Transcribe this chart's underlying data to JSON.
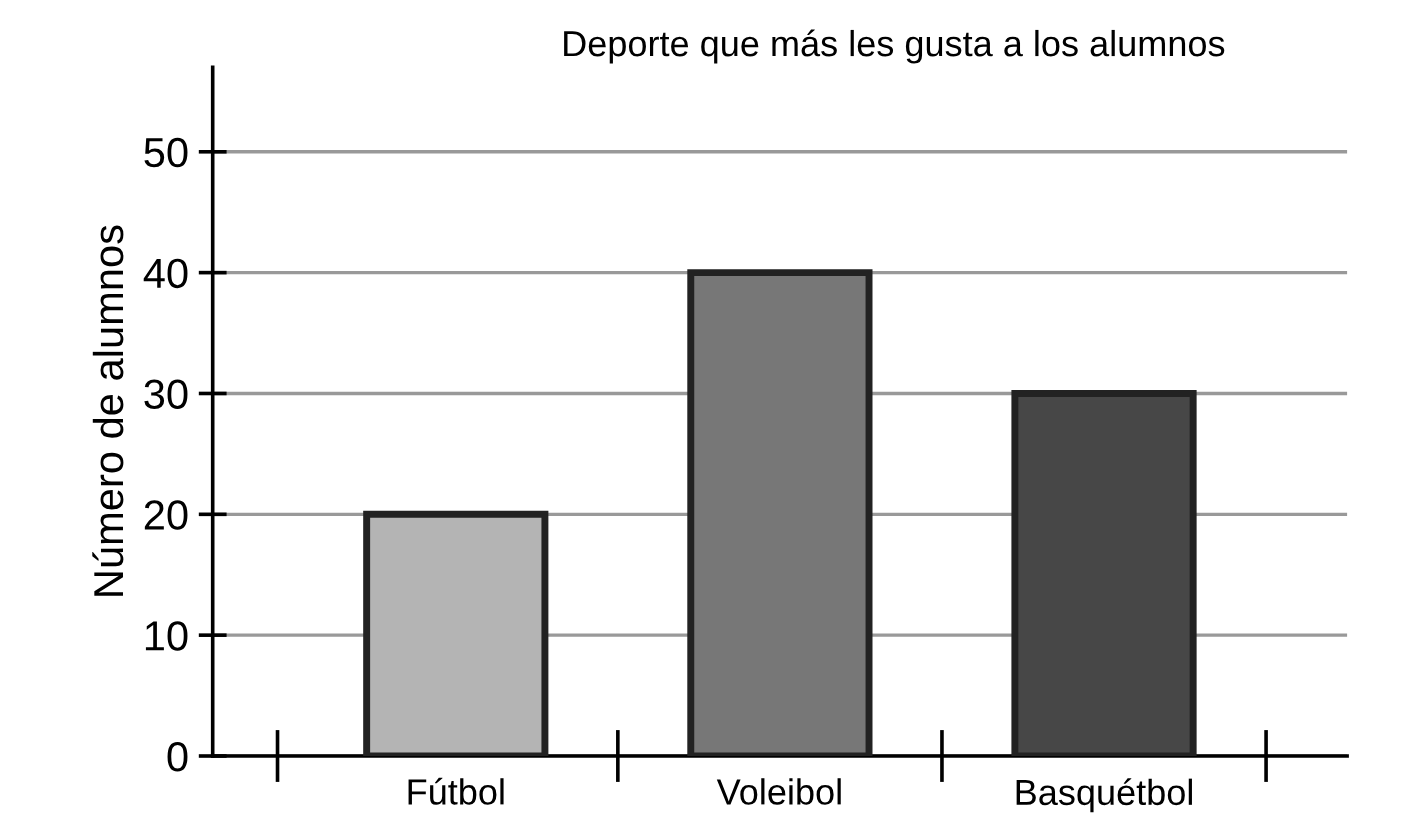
{
  "chart_data": {
    "type": "bar",
    "title": "Deporte que más les gusta a los alumnos",
    "ylabel": "Número de alumnos",
    "categories": [
      "Fútbol",
      "Voleibol",
      "Basquétbol"
    ],
    "values": [
      20,
      40,
      30
    ],
    "colors": [
      "#b4b4b4",
      "#777777",
      "#474747"
    ],
    "ylim": [
      0,
      57
    ],
    "yticks": [
      0,
      10,
      20,
      30,
      40,
      50
    ],
    "grid": "y",
    "legend": false
  }
}
